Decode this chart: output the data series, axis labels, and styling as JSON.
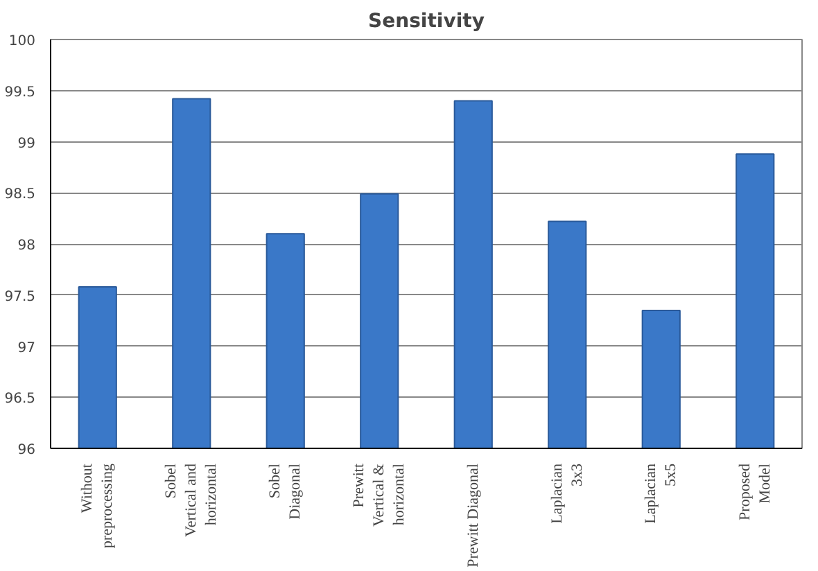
{
  "chart_data": {
    "type": "bar",
    "title": "Sensitivity",
    "categories": [
      "Without\npreprocessing",
      "Sobel\nVertical and\nhorizontal",
      "Sobel\nDiagonal",
      "Prewitt\nVertical &\nhorizontal",
      "Prewitt Diagonal",
      "Laplacian\n3x3",
      "Laplacian\n5x5",
      "Proposed\nModel"
    ],
    "values": [
      97.58,
      99.42,
      98.1,
      98.49,
      99.4,
      98.22,
      97.35,
      98.88
    ],
    "color": "#3a78c8",
    "ylim": [
      96,
      100
    ],
    "yticks": [
      96,
      96.5,
      97,
      97.5,
      98,
      98.5,
      99,
      99.5,
      100
    ],
    "grid": "y"
  }
}
